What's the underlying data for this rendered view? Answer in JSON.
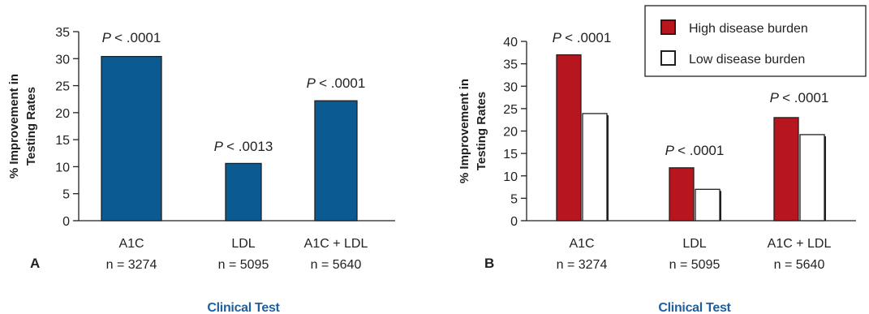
{
  "colors": {
    "blue": "#0b5a91",
    "red": "#b8161f",
    "white": "#ffffff",
    "axis": "#231f20",
    "xlabel": "#1f5f9e"
  },
  "chart_data": [
    {
      "type": "bar",
      "panel": "A",
      "ylabel_line1": "% Improvement in",
      "ylabel_line2": "Testing Rates",
      "xlabel": "Clinical Test",
      "ylim": [
        0,
        35
      ],
      "yticks": [
        0,
        5,
        10,
        15,
        20,
        25,
        30,
        35
      ],
      "categories": [
        {
          "name": "A1C",
          "n": "n = 3274",
          "p": "< .0001"
        },
        {
          "name": "LDL",
          "n": "n = 5095",
          "p": "< .0013"
        },
        {
          "name": "A1C + LDL",
          "n": "n = 5640",
          "p": "< .0001"
        }
      ],
      "p_symbol": "P",
      "series": [
        {
          "name": "",
          "color": "#0b5a91",
          "values": [
            30.4,
            10.6,
            22.2
          ]
        }
      ]
    },
    {
      "type": "bar",
      "panel": "B",
      "ylabel_line1": "% Improvement in",
      "ylabel_line2": "Testing Rates",
      "xlabel": "Clinical Test",
      "ylim": [
        0,
        40
      ],
      "yticks": [
        0,
        5,
        10,
        15,
        20,
        25,
        30,
        35,
        40
      ],
      "categories": [
        {
          "name": "A1C",
          "n": "n = 3274",
          "p": "< .0001"
        },
        {
          "name": "LDL",
          "n": "n = 5095",
          "p": "< .0001"
        },
        {
          "name": "A1C + LDL",
          "n": "n = 5640",
          "p": "< .0001"
        }
      ],
      "p_symbol": "P",
      "legend_position": "top-right",
      "series": [
        {
          "name": "High disease burden",
          "color": "#b8161f",
          "values": [
            37.0,
            11.8,
            23.0
          ]
        },
        {
          "name": "Low disease burden",
          "color": "#ffffff",
          "values": [
            23.9,
            7.0,
            19.2
          ]
        }
      ]
    }
  ]
}
